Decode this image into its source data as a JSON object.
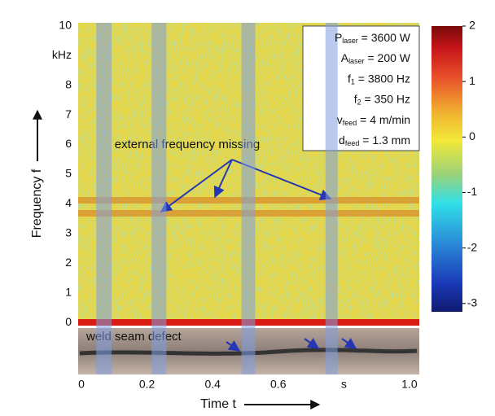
{
  "chart_data": {
    "type": "spectrogram",
    "xlabel": "Time t",
    "ylabel": "Frequency f",
    "xlim": [
      -0.01,
      1.03
    ],
    "xticks": [
      0,
      0.2,
      0.4,
      0.6,
      {
        "value": 0.8,
        "label": "s"
      },
      {
        "value": 1,
        "label": "1.0"
      }
    ],
    "ylim": [
      -0.1,
      10.1
    ],
    "yticks": [
      0,
      1,
      2,
      3,
      4,
      5,
      6,
      7,
      {
        "value": 8,
        "label": "8"
      },
      {
        "value": 9,
        "label": "kHz"
      },
      10
    ],
    "clim": [
      -3.15,
      2
    ],
    "cticks": [
      2,
      1,
      0,
      -1,
      -2,
      -3
    ],
    "missing_intervals": [
      [
        0.045,
        0.092
      ],
      [
        0.214,
        0.259
      ],
      [
        0.488,
        0.53
      ],
      [
        0.744,
        0.781
      ]
    ],
    "annotations": [
      "external frequency missing",
      "weld seam defect"
    ],
    "parameters": [
      {
        "symbol": "P",
        "sub": "laser",
        "text": " = 3600 W"
      },
      {
        "symbol": "A",
        "sub": "laser",
        "text": " = 200 W"
      },
      {
        "symbol": "f",
        "sub": "1",
        "text": " = 3800 Hz"
      },
      {
        "symbol": "f",
        "sub": "2",
        "text": " = 350 Hz"
      },
      {
        "symbol": "v",
        "sub": "feed",
        "text": " = 4 m/min"
      },
      {
        "symbol": "d",
        "sub": "feed",
        "text": " = 1.3 mm"
      }
    ]
  }
}
